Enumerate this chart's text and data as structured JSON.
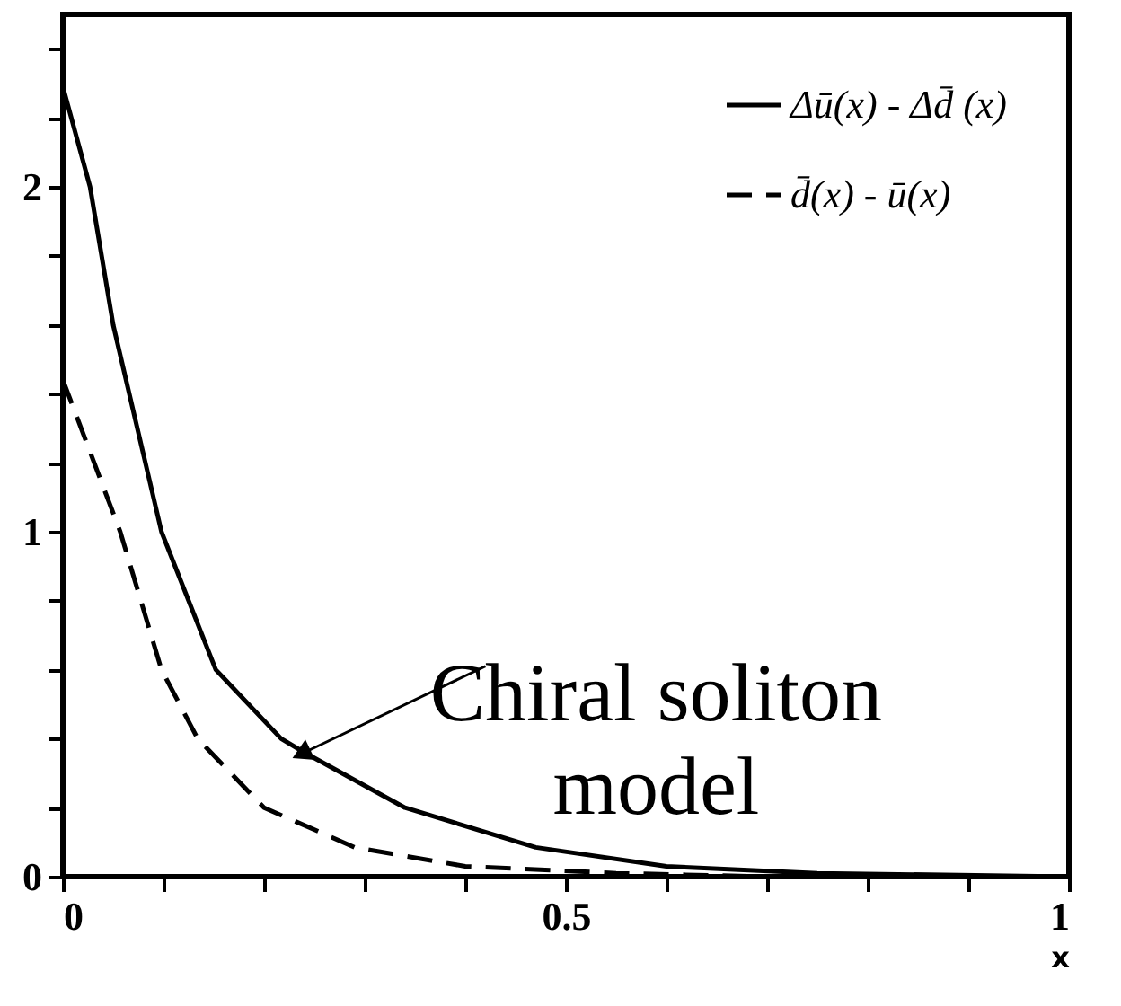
{
  "chart_data": {
    "type": "line",
    "xlabel": "x",
    "series": [
      {
        "name": "Δū(x) - Δd̄ (x)",
        "color": "#000000",
        "line_style": "solid",
        "x": [
          0,
          0.027,
          0.05,
          0.098,
          0.152,
          0.217,
          0.24,
          0.34,
          0.47,
          0.6,
          0.75,
          1
        ],
        "values": [
          2.29,
          2.0,
          1.6,
          1.0,
          0.6,
          0.4,
          0.36,
          0.2,
          0.085,
          0.03,
          0.01,
          0
        ]
      },
      {
        "name": "d̄(x) - ū(x)",
        "color": "#000000",
        "line_style": "dashed",
        "x": [
          0,
          0.057,
          0.098,
          0.134,
          0.2,
          0.29,
          0.4,
          0.55,
          0.7
        ],
        "values": [
          1.44,
          1.0,
          0.6,
          0.4,
          0.2,
          0.085,
          0.03,
          0.01,
          0
        ]
      }
    ],
    "xlim": [
      0,
      1
    ],
    "xticks": [
      0,
      {
        "value": 0.1,
        "label": null
      },
      {
        "value": 0.2,
        "label": null
      },
      {
        "value": 0.3,
        "label": null
      },
      {
        "value": 0.4,
        "label": null
      },
      0.5,
      {
        "value": 0.6,
        "label": null
      },
      {
        "value": 0.7,
        "label": null
      },
      {
        "value": 0.8,
        "label": null
      },
      {
        "value": 0.9,
        "label": null
      },
      1
    ],
    "ylim": [
      0,
      2.5
    ],
    "yticks": [
      0,
      {
        "value": 0.2,
        "label": null
      },
      {
        "value": 0.4,
        "label": null
      },
      {
        "value": 0.6,
        "label": null
      },
      {
        "value": 0.8,
        "label": null
      },
      1,
      {
        "value": 1.2,
        "label": null
      },
      {
        "value": 1.4,
        "label": null
      },
      {
        "value": 1.6,
        "label": null
      },
      {
        "value": 1.8,
        "label": null
      },
      2,
      {
        "value": 2.2,
        "label": null
      },
      {
        "value": 2.4,
        "label": null
      }
    ],
    "grid": false,
    "legend": "top right",
    "marker": "none",
    "annotations": [
      {
        "text": "Chiral soliton model",
        "x": 0.24,
        "y": 0.36
      }
    ]
  }
}
